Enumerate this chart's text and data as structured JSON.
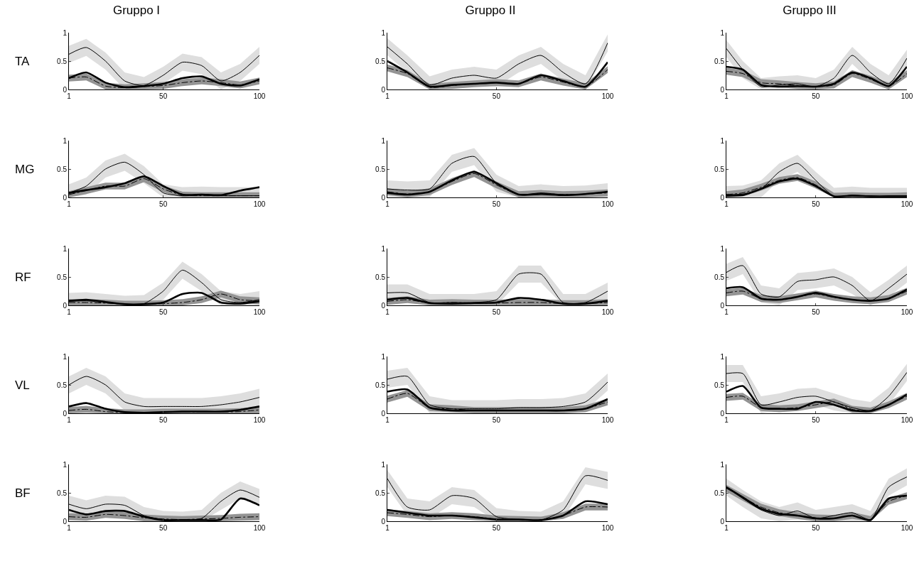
{
  "chart_data": [
    {
      "type": "line",
      "title": "Gruppo I",
      "ylabel": "TA",
      "x": [
        1,
        10,
        20,
        30,
        40,
        50,
        60,
        70,
        80,
        90,
        100
      ],
      "xlim": [
        1,
        100
      ],
      "ylim": [
        0,
        1
      ],
      "xticks": [
        1,
        50,
        100
      ],
      "yticks": [
        0,
        0.5,
        1
      ],
      "series": [
        {
          "color": "#000000",
          "values": [
            0.62,
            0.74,
            0.5,
            0.15,
            0.07,
            0.25,
            0.48,
            0.42,
            0.15,
            0.3,
            0.6
          ],
          "lower": [
            0.47,
            0.59,
            0.35,
            0,
            0,
            0.1,
            0.33,
            0.27,
            0,
            0.15,
            0.45
          ],
          "upper": [
            0.77,
            0.89,
            0.65,
            0.3,
            0.22,
            0.4,
            0.63,
            0.57,
            0.3,
            0.45,
            0.75
          ]
        },
        {
          "color": "#000000",
          "values": [
            0.2,
            0.3,
            0.12,
            0.04,
            0.06,
            0.1,
            0.2,
            0.23,
            0.1,
            0.07,
            0.18
          ]
        },
        {
          "color": "#000000",
          "line_style": "dashed",
          "values": [
            0.2,
            0.22,
            0.06,
            0.03,
            0.05,
            0.07,
            0.12,
            0.15,
            0.12,
            0.08,
            0.15
          ],
          "lower": [
            0.14,
            0.16,
            0,
            0,
            0,
            0.01,
            0.06,
            0.09,
            0.06,
            0.02,
            0.09
          ],
          "upper": [
            0.26,
            0.28,
            0.12,
            0.09,
            0.11,
            0.13,
            0.18,
            0.21,
            0.18,
            0.14,
            0.21
          ]
        }
      ]
    },
    {
      "type": "line",
      "title": "Gruppo II",
      "x": [
        1,
        10,
        20,
        30,
        40,
        50,
        60,
        70,
        80,
        90,
        100
      ],
      "xlim": [
        1,
        100
      ],
      "ylim": [
        0,
        1
      ],
      "xticks": [
        1,
        50,
        100
      ],
      "yticks": [
        0,
        0.5,
        1
      ],
      "series": [
        {
          "color": "#000000",
          "values": [
            0.75,
            0.45,
            0.08,
            0.2,
            0.25,
            0.2,
            0.45,
            0.6,
            0.3,
            0.1,
            0.82
          ],
          "lower": [
            0.6,
            0.3,
            0,
            0.05,
            0.1,
            0.05,
            0.3,
            0.45,
            0.15,
            0,
            0.67
          ],
          "upper": [
            0.9,
            0.6,
            0.23,
            0.35,
            0.4,
            0.35,
            0.6,
            0.75,
            0.45,
            0.25,
            0.97
          ]
        },
        {
          "color": "#000000",
          "values": [
            0.5,
            0.3,
            0.05,
            0.08,
            0.1,
            0.12,
            0.1,
            0.25,
            0.15,
            0.05,
            0.48
          ]
        },
        {
          "color": "#000000",
          "line_style": "dashed",
          "values": [
            0.38,
            0.28,
            0.04,
            0.07,
            0.1,
            0.12,
            0.1,
            0.22,
            0.13,
            0.05,
            0.35
          ],
          "lower": [
            0.32,
            0.22,
            0,
            0.01,
            0.04,
            0.06,
            0.04,
            0.16,
            0.07,
            0,
            0.29
          ],
          "upper": [
            0.44,
            0.34,
            0.1,
            0.13,
            0.16,
            0.18,
            0.16,
            0.28,
            0.19,
            0.11,
            0.41
          ]
        }
      ]
    },
    {
      "type": "line",
      "title": "Gruppo III",
      "x": [
        1,
        10,
        20,
        30,
        40,
        50,
        60,
        70,
        80,
        90,
        100
      ],
      "xlim": [
        1,
        100
      ],
      "ylim": [
        0,
        1
      ],
      "xticks": [
        1,
        50,
        100
      ],
      "yticks": [
        0,
        0.5,
        1
      ],
      "series": [
        {
          "color": "#000000",
          "values": [
            0.72,
            0.35,
            0.05,
            0.08,
            0.1,
            0.05,
            0.2,
            0.6,
            0.3,
            0.1,
            0.55
          ],
          "lower": [
            0.57,
            0.2,
            0,
            0,
            0,
            0,
            0.05,
            0.45,
            0.15,
            0,
            0.4
          ],
          "upper": [
            0.87,
            0.5,
            0.2,
            0.23,
            0.25,
            0.2,
            0.35,
            0.75,
            0.45,
            0.25,
            0.7
          ]
        },
        {
          "color": "#000000",
          "values": [
            0.4,
            0.35,
            0.08,
            0.05,
            0.06,
            0.05,
            0.1,
            0.3,
            0.2,
            0.06,
            0.4
          ]
        },
        {
          "color": "#000000",
          "line_style": "dashed",
          "values": [
            0.32,
            0.28,
            0.12,
            0.1,
            0.07,
            0.05,
            0.08,
            0.28,
            0.18,
            0.06,
            0.28
          ],
          "lower": [
            0.26,
            0.22,
            0.06,
            0.04,
            0.01,
            0,
            0.02,
            0.22,
            0.12,
            0,
            0.22
          ],
          "upper": [
            0.38,
            0.34,
            0.18,
            0.16,
            0.13,
            0.11,
            0.14,
            0.34,
            0.24,
            0.12,
            0.34
          ]
        }
      ]
    },
    {
      "type": "line",
      "ylabel": "MG",
      "x": [
        1,
        10,
        20,
        30,
        40,
        50,
        60,
        70,
        80,
        90,
        100
      ],
      "xlim": [
        1,
        100
      ],
      "ylim": [
        0,
        1
      ],
      "xticks": [
        1,
        50,
        100
      ],
      "yticks": [
        0,
        0.5,
        1
      ],
      "series": [
        {
          "color": "#000000",
          "values": [
            0.08,
            0.2,
            0.5,
            0.62,
            0.4,
            0.08,
            0.03,
            0.04,
            0.03,
            0.03,
            0.03
          ],
          "lower": [
            0,
            0.05,
            0.35,
            0.47,
            0.25,
            0,
            0,
            0,
            0,
            0,
            0
          ],
          "upper": [
            0.23,
            0.35,
            0.65,
            0.77,
            0.55,
            0.23,
            0.18,
            0.19,
            0.18,
            0.18,
            0.18
          ]
        },
        {
          "color": "#000000",
          "values": [
            0.08,
            0.13,
            0.18,
            0.25,
            0.37,
            0.2,
            0.05,
            0.05,
            0.04,
            0.12,
            0.18
          ]
        },
        {
          "color": "#000000",
          "line_style": "dashed",
          "values": [
            0.05,
            0.12,
            0.2,
            0.2,
            0.33,
            0.15,
            0.04,
            0.03,
            0.03,
            0.03,
            0.03
          ],
          "lower": [
            0,
            0.06,
            0.14,
            0.14,
            0.27,
            0.09,
            0,
            0,
            0,
            0,
            0
          ],
          "upper": [
            0.11,
            0.18,
            0.26,
            0.26,
            0.39,
            0.21,
            0.1,
            0.09,
            0.09,
            0.09,
            0.09
          ]
        }
      ]
    },
    {
      "type": "line",
      "x": [
        1,
        10,
        20,
        30,
        40,
        50,
        60,
        70,
        80,
        90,
        100
      ],
      "xlim": [
        1,
        100
      ],
      "ylim": [
        0,
        1
      ],
      "xticks": [
        1,
        50,
        100
      ],
      "yticks": [
        0,
        0.5,
        1
      ],
      "series": [
        {
          "color": "#000000",
          "values": [
            0.15,
            0.13,
            0.15,
            0.6,
            0.72,
            0.25,
            0.05,
            0.08,
            0.05,
            0.06,
            0.1
          ],
          "lower": [
            0,
            0,
            0,
            0.45,
            0.57,
            0.1,
            0,
            0,
            0,
            0,
            0
          ],
          "upper": [
            0.3,
            0.28,
            0.3,
            0.75,
            0.87,
            0.4,
            0.2,
            0.23,
            0.2,
            0.21,
            0.25
          ]
        },
        {
          "color": "#000000",
          "values": [
            0.08,
            0.05,
            0.1,
            0.3,
            0.45,
            0.25,
            0.05,
            0.06,
            0.04,
            0.06,
            0.1
          ]
        },
        {
          "color": "#000000",
          "line_style": "dashed",
          "values": [
            0.1,
            0.06,
            0.1,
            0.28,
            0.42,
            0.22,
            0.05,
            0.07,
            0.05,
            0.06,
            0.08
          ],
          "lower": [
            0.04,
            0,
            0.04,
            0.22,
            0.36,
            0.16,
            0,
            0.01,
            0,
            0,
            0.02
          ],
          "upper": [
            0.16,
            0.12,
            0.16,
            0.34,
            0.48,
            0.28,
            0.11,
            0.13,
            0.11,
            0.12,
            0.14
          ]
        }
      ]
    },
    {
      "type": "line",
      "x": [
        1,
        10,
        20,
        30,
        40,
        50,
        60,
        70,
        80,
        90,
        100
      ],
      "xlim": [
        1,
        100
      ],
      "ylim": [
        0,
        1
      ],
      "xticks": [
        1,
        50,
        100
      ],
      "yticks": [
        0,
        0.5,
        1
      ],
      "series": [
        {
          "color": "#000000",
          "values": [
            0.05,
            0.06,
            0.15,
            0.45,
            0.6,
            0.3,
            0.02,
            0.04,
            0.02,
            0.02,
            0.02
          ],
          "lower": [
            0,
            0,
            0,
            0.3,
            0.45,
            0.15,
            0,
            0,
            0,
            0,
            0
          ],
          "upper": [
            0.2,
            0.21,
            0.3,
            0.6,
            0.75,
            0.45,
            0.17,
            0.19,
            0.17,
            0.17,
            0.17
          ]
        },
        {
          "color": "#000000",
          "values": [
            0.03,
            0.04,
            0.15,
            0.28,
            0.33,
            0.2,
            0.02,
            0.03,
            0.02,
            0.02,
            0.02
          ]
        },
        {
          "color": "#000000",
          "line_style": "dashed",
          "values": [
            0.05,
            0.08,
            0.18,
            0.3,
            0.35,
            0.22,
            0.02,
            0.03,
            0.02,
            0.02,
            0.03
          ],
          "lower": [
            0,
            0.02,
            0.12,
            0.24,
            0.29,
            0.16,
            0,
            0,
            0,
            0,
            0
          ],
          "upper": [
            0.11,
            0.14,
            0.24,
            0.36,
            0.41,
            0.28,
            0.08,
            0.09,
            0.08,
            0.08,
            0.09
          ]
        }
      ]
    },
    {
      "type": "line",
      "ylabel": "RF",
      "x": [
        1,
        10,
        20,
        30,
        40,
        50,
        60,
        70,
        80,
        90,
        100
      ],
      "xlim": [
        1,
        100
      ],
      "ylim": [
        0,
        1
      ],
      "xticks": [
        1,
        50,
        100
      ],
      "yticks": [
        0,
        0.5,
        1
      ],
      "series": [
        {
          "color": "#000000",
          "values": [
            0.07,
            0.08,
            0.05,
            0.02,
            0.03,
            0.25,
            0.62,
            0.4,
            0.1,
            0.05,
            0.1
          ],
          "lower": [
            0,
            0,
            0,
            0,
            0,
            0.1,
            0.47,
            0.25,
            0,
            0,
            0
          ],
          "upper": [
            0.22,
            0.23,
            0.2,
            0.17,
            0.18,
            0.4,
            0.77,
            0.55,
            0.25,
            0.2,
            0.25
          ]
        },
        {
          "color": "#000000",
          "values": [
            0.08,
            0.1,
            0.06,
            0.02,
            0.02,
            0.05,
            0.2,
            0.22,
            0.05,
            0.03,
            0.07
          ]
        },
        {
          "color": "#000000",
          "line_style": "dashed",
          "values": [
            0.05,
            0.05,
            0.04,
            0.02,
            0.02,
            0.03,
            0.05,
            0.1,
            0.2,
            0.1,
            0.08
          ],
          "lower": [
            0,
            0,
            0,
            0,
            0,
            0,
            0,
            0.04,
            0.14,
            0.04,
            0.02
          ],
          "upper": [
            0.11,
            0.11,
            0.1,
            0.08,
            0.08,
            0.09,
            0.11,
            0.16,
            0.26,
            0.16,
            0.14
          ]
        }
      ]
    },
    {
      "type": "line",
      "x": [
        1,
        10,
        20,
        30,
        40,
        50,
        60,
        70,
        80,
        90,
        100
      ],
      "xlim": [
        1,
        100
      ],
      "ylim": [
        0,
        1
      ],
      "xticks": [
        1,
        50,
        100
      ],
      "yticks": [
        0,
        0.5,
        1
      ],
      "series": [
        {
          "color": "#000000",
          "values": [
            0.22,
            0.22,
            0.05,
            0.05,
            0.05,
            0.1,
            0.55,
            0.55,
            0.05,
            0.05,
            0.25
          ],
          "lower": [
            0.07,
            0.07,
            0,
            0,
            0,
            0,
            0.4,
            0.4,
            0,
            0,
            0.1
          ],
          "upper": [
            0.37,
            0.37,
            0.2,
            0.2,
            0.2,
            0.25,
            0.7,
            0.7,
            0.2,
            0.2,
            0.4
          ]
        },
        {
          "color": "#000000",
          "values": [
            0.1,
            0.13,
            0.04,
            0.03,
            0.04,
            0.05,
            0.13,
            0.1,
            0.03,
            0.03,
            0.08
          ]
        },
        {
          "color": "#000000",
          "line_style": "dashed",
          "values": [
            0.07,
            0.1,
            0.04,
            0.05,
            0.04,
            0.04,
            0.05,
            0.05,
            0.03,
            0.03,
            0.05
          ],
          "lower": [
            0.01,
            0.04,
            0,
            0,
            0,
            0,
            0,
            0,
            0,
            0,
            0
          ],
          "upper": [
            0.13,
            0.16,
            0.1,
            0.11,
            0.1,
            0.1,
            0.11,
            0.11,
            0.09,
            0.09,
            0.11
          ]
        }
      ]
    },
    {
      "type": "line",
      "x": [
        1,
        10,
        20,
        30,
        40,
        50,
        60,
        70,
        80,
        90,
        100
      ],
      "xlim": [
        1,
        100
      ],
      "ylim": [
        0,
        1
      ],
      "xticks": [
        1,
        50,
        100
      ],
      "yticks": [
        0,
        0.5,
        1
      ],
      "series": [
        {
          "color": "#000000",
          "values": [
            0.58,
            0.7,
            0.2,
            0.15,
            0.42,
            0.45,
            0.5,
            0.35,
            0.08,
            0.3,
            0.55
          ],
          "lower": [
            0.43,
            0.55,
            0.05,
            0,
            0.27,
            0.3,
            0.35,
            0.2,
            0,
            0.15,
            0.4
          ],
          "upper": [
            0.73,
            0.85,
            0.35,
            0.3,
            0.57,
            0.6,
            0.65,
            0.5,
            0.23,
            0.45,
            0.7
          ]
        },
        {
          "color": "#000000",
          "values": [
            0.3,
            0.32,
            0.12,
            0.1,
            0.15,
            0.22,
            0.15,
            0.1,
            0.08,
            0.12,
            0.28
          ]
        },
        {
          "color": "#000000",
          "line_style": "dashed",
          "values": [
            0.22,
            0.25,
            0.12,
            0.1,
            0.15,
            0.2,
            0.14,
            0.1,
            0.08,
            0.12,
            0.25
          ],
          "lower": [
            0.16,
            0.19,
            0.06,
            0.04,
            0.09,
            0.14,
            0.08,
            0.04,
            0.02,
            0.06,
            0.19
          ],
          "upper": [
            0.28,
            0.31,
            0.18,
            0.16,
            0.21,
            0.26,
            0.2,
            0.16,
            0.14,
            0.18,
            0.31
          ]
        }
      ]
    },
    {
      "type": "line",
      "ylabel": "VL",
      "x": [
        1,
        10,
        20,
        30,
        40,
        50,
        60,
        70,
        80,
        90,
        100
      ],
      "xlim": [
        1,
        100
      ],
      "ylim": [
        0,
        1
      ],
      "xticks": [
        1,
        50,
        100
      ],
      "yticks": [
        0,
        0.5,
        1
      ],
      "series": [
        {
          "color": "#000000",
          "values": [
            0.5,
            0.65,
            0.5,
            0.2,
            0.12,
            0.12,
            0.12,
            0.12,
            0.15,
            0.2,
            0.28
          ],
          "lower": [
            0.35,
            0.5,
            0.35,
            0.05,
            0,
            0,
            0,
            0,
            0,
            0.05,
            0.13
          ],
          "upper": [
            0.65,
            0.8,
            0.65,
            0.35,
            0.27,
            0.27,
            0.27,
            0.27,
            0.3,
            0.35,
            0.43
          ]
        },
        {
          "color": "#000000",
          "values": [
            0.12,
            0.18,
            0.08,
            0.02,
            0.01,
            0.02,
            0.03,
            0.03,
            0.03,
            0.06,
            0.12
          ]
        },
        {
          "color": "#000000",
          "line_style": "dashed",
          "values": [
            0.05,
            0.07,
            0.03,
            0.01,
            0.01,
            0.02,
            0.02,
            0.02,
            0.02,
            0.03,
            0.06
          ],
          "lower": [
            0,
            0.01,
            0,
            0,
            0,
            0,
            0,
            0,
            0,
            0,
            0
          ],
          "upper": [
            0.11,
            0.13,
            0.09,
            0.07,
            0.07,
            0.08,
            0.08,
            0.08,
            0.08,
            0.09,
            0.12
          ]
        }
      ]
    },
    {
      "type": "line",
      "x": [
        1,
        10,
        20,
        30,
        40,
        50,
        60,
        70,
        80,
        90,
        100
      ],
      "xlim": [
        1,
        100
      ],
      "ylim": [
        0,
        1
      ],
      "xticks": [
        1,
        50,
        100
      ],
      "yticks": [
        0,
        0.5,
        1
      ],
      "series": [
        {
          "color": "#000000",
          "values": [
            0.6,
            0.65,
            0.15,
            0.08,
            0.08,
            0.08,
            0.1,
            0.1,
            0.12,
            0.2,
            0.55
          ],
          "lower": [
            0.45,
            0.5,
            0,
            0,
            0,
            0,
            0,
            0,
            0,
            0.05,
            0.4
          ],
          "upper": [
            0.75,
            0.8,
            0.3,
            0.23,
            0.23,
            0.23,
            0.25,
            0.25,
            0.27,
            0.35,
            0.7
          ]
        },
        {
          "color": "#000000",
          "values": [
            0.38,
            0.42,
            0.1,
            0.05,
            0.05,
            0.05,
            0.05,
            0.05,
            0.05,
            0.08,
            0.25
          ]
        },
        {
          "color": "#000000",
          "line_style": "dashed",
          "values": [
            0.25,
            0.35,
            0.1,
            0.08,
            0.05,
            0.05,
            0.05,
            0.05,
            0.05,
            0.08,
            0.2
          ],
          "lower": [
            0.19,
            0.29,
            0.04,
            0.02,
            0,
            0,
            0,
            0,
            0,
            0.02,
            0.14
          ],
          "upper": [
            0.31,
            0.41,
            0.16,
            0.14,
            0.11,
            0.11,
            0.11,
            0.11,
            0.11,
            0.14,
            0.26
          ]
        }
      ]
    },
    {
      "type": "line",
      "x": [
        1,
        10,
        20,
        30,
        40,
        50,
        60,
        70,
        80,
        90,
        100
      ],
      "xlim": [
        1,
        100
      ],
      "ylim": [
        0,
        1
      ],
      "xticks": [
        1,
        50,
        100
      ],
      "yticks": [
        0,
        0.5,
        1
      ],
      "series": [
        {
          "color": "#000000",
          "values": [
            0.7,
            0.7,
            0.15,
            0.2,
            0.28,
            0.3,
            0.2,
            0.1,
            0.05,
            0.3,
            0.72
          ],
          "lower": [
            0.55,
            0.55,
            0,
            0.05,
            0.13,
            0.15,
            0.05,
            0,
            0,
            0.15,
            0.57
          ],
          "upper": [
            0.85,
            0.85,
            0.3,
            0.35,
            0.43,
            0.45,
            0.35,
            0.25,
            0.2,
            0.45,
            0.87
          ]
        },
        {
          "color": "#000000",
          "values": [
            0.38,
            0.48,
            0.1,
            0.08,
            0.08,
            0.2,
            0.15,
            0.05,
            0.04,
            0.15,
            0.33
          ]
        },
        {
          "color": "#000000",
          "line_style": "dashed",
          "values": [
            0.28,
            0.3,
            0.1,
            0.08,
            0.1,
            0.15,
            0.2,
            0.07,
            0.04,
            0.15,
            0.3
          ],
          "lower": [
            0.22,
            0.24,
            0.04,
            0.02,
            0.04,
            0.09,
            0.14,
            0.01,
            0,
            0.09,
            0.24
          ],
          "upper": [
            0.34,
            0.36,
            0.16,
            0.14,
            0.16,
            0.21,
            0.26,
            0.13,
            0.1,
            0.21,
            0.36
          ]
        }
      ]
    },
    {
      "type": "line",
      "ylabel": "BF",
      "x": [
        1,
        10,
        20,
        30,
        40,
        50,
        60,
        70,
        80,
        90,
        100
      ],
      "xlim": [
        1,
        100
      ],
      "ylim": [
        0,
        1
      ],
      "xticks": [
        1,
        50,
        100
      ],
      "yticks": [
        0,
        0.5,
        1
      ],
      "series": [
        {
          "color": "#000000",
          "values": [
            0.3,
            0.22,
            0.3,
            0.28,
            0.1,
            0.03,
            0.02,
            0.05,
            0.35,
            0.55,
            0.42
          ],
          "lower": [
            0.15,
            0.07,
            0.15,
            0.13,
            0,
            0,
            0,
            0,
            0.2,
            0.4,
            0.27
          ],
          "upper": [
            0.45,
            0.37,
            0.45,
            0.43,
            0.25,
            0.18,
            0.17,
            0.2,
            0.5,
            0.7,
            0.57
          ]
        },
        {
          "color": "#000000",
          "values": [
            0.2,
            0.12,
            0.18,
            0.18,
            0.08,
            0.02,
            0.02,
            0.02,
            0.03,
            0.4,
            0.28
          ]
        },
        {
          "color": "#000000",
          "line_style": "dashed",
          "values": [
            0.08,
            0.07,
            0.12,
            0.1,
            0.06,
            0.04,
            0.03,
            0.04,
            0.05,
            0.07,
            0.08
          ],
          "lower": [
            0.02,
            0.01,
            0.06,
            0.04,
            0,
            0,
            0,
            0,
            0,
            0.01,
            0.02
          ],
          "upper": [
            0.14,
            0.13,
            0.18,
            0.16,
            0.12,
            0.1,
            0.09,
            0.1,
            0.11,
            0.13,
            0.14
          ]
        }
      ]
    },
    {
      "type": "line",
      "x": [
        1,
        10,
        20,
        30,
        40,
        50,
        60,
        70,
        80,
        90,
        100
      ],
      "xlim": [
        1,
        100
      ],
      "ylim": [
        0,
        1
      ],
      "xticks": [
        1,
        50,
        100
      ],
      "yticks": [
        0,
        0.5,
        1
      ],
      "series": [
        {
          "color": "#000000",
          "values": [
            0.75,
            0.25,
            0.2,
            0.45,
            0.4,
            0.08,
            0.03,
            0.02,
            0.2,
            0.8,
            0.72
          ],
          "lower": [
            0.6,
            0.1,
            0.05,
            0.3,
            0.25,
            0,
            0,
            0,
            0.05,
            0.65,
            0.57
          ],
          "upper": [
            0.9,
            0.4,
            0.35,
            0.6,
            0.55,
            0.23,
            0.18,
            0.17,
            0.35,
            0.95,
            0.87
          ]
        },
        {
          "color": "#000000",
          "values": [
            0.2,
            0.15,
            0.1,
            0.1,
            0.07,
            0.03,
            0.03,
            0.02,
            0.1,
            0.35,
            0.3
          ]
        },
        {
          "color": "#000000",
          "line_style": "dashed",
          "values": [
            0.15,
            0.12,
            0.08,
            0.1,
            0.08,
            0.04,
            0.03,
            0.02,
            0.1,
            0.25,
            0.25
          ],
          "lower": [
            0.09,
            0.06,
            0.02,
            0.04,
            0.02,
            0,
            0,
            0,
            0.04,
            0.19,
            0.19
          ],
          "upper": [
            0.21,
            0.18,
            0.14,
            0.16,
            0.14,
            0.1,
            0.09,
            0.08,
            0.16,
            0.31,
            0.31
          ]
        }
      ]
    },
    {
      "type": "line",
      "x": [
        1,
        10,
        20,
        30,
        40,
        50,
        60,
        70,
        80,
        90,
        100
      ],
      "xlim": [
        1,
        100
      ],
      "ylim": [
        0,
        1
      ],
      "xticks": [
        1,
        50,
        100
      ],
      "yticks": [
        0,
        0.5,
        1
      ],
      "series": [
        {
          "color": "#000000",
          "values": [
            0.6,
            0.4,
            0.2,
            0.1,
            0.18,
            0.05,
            0.1,
            0.15,
            0.03,
            0.6,
            0.78
          ],
          "lower": [
            0.45,
            0.25,
            0.05,
            0,
            0.03,
            0,
            0,
            0,
            0,
            0.45,
            0.63
          ],
          "upper": [
            0.75,
            0.55,
            0.35,
            0.25,
            0.33,
            0.2,
            0.25,
            0.3,
            0.18,
            0.75,
            0.93
          ]
        },
        {
          "color": "#000000",
          "values": [
            0.6,
            0.42,
            0.22,
            0.13,
            0.1,
            0.05,
            0.05,
            0.1,
            0.02,
            0.4,
            0.45
          ]
        },
        {
          "color": "#000000",
          "line_style": "dashed",
          "values": [
            0.58,
            0.42,
            0.25,
            0.15,
            0.1,
            0.06,
            0.05,
            0.1,
            0.03,
            0.35,
            0.45
          ],
          "lower": [
            0.52,
            0.36,
            0.19,
            0.09,
            0.04,
            0,
            0,
            0.04,
            0,
            0.29,
            0.39
          ],
          "upper": [
            0.64,
            0.48,
            0.31,
            0.21,
            0.16,
            0.12,
            0.11,
            0.16,
            0.09,
            0.41,
            0.51
          ]
        }
      ]
    }
  ]
}
